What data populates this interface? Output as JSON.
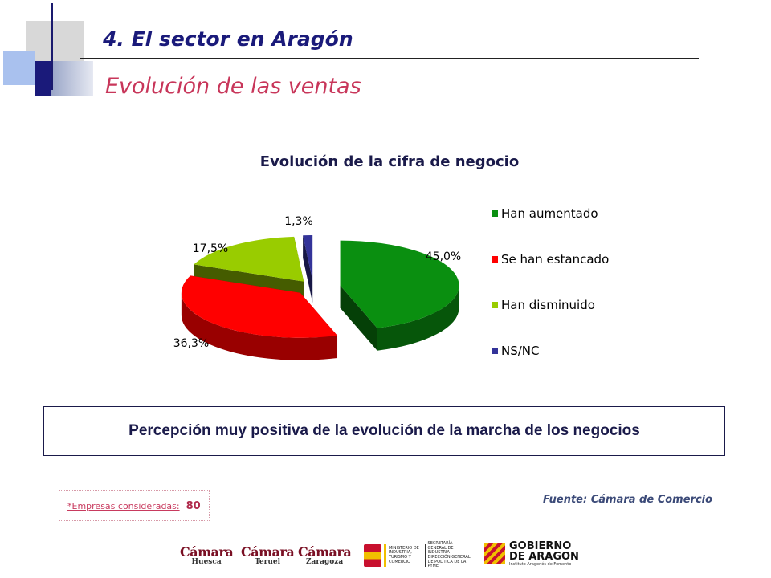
{
  "header": {
    "title": "4. El sector en Aragón",
    "subtitle": "Evolución de las ventas"
  },
  "chart_data": {
    "type": "pie",
    "title": "Evolución de la cifra de negocio",
    "categories": [
      "Han aumentado",
      "Se han estancado",
      "Han disminuido",
      "NS/NC"
    ],
    "values": [
      45.0,
      36.3,
      17.5,
      1.3
    ],
    "data_labels": [
      "45,0%",
      "36,3%",
      "17,5%",
      "1,3%"
    ],
    "colors": [
      "#0a8f10",
      "#ff0000",
      "#99cc00",
      "#333399"
    ],
    "legend": "right",
    "style": "3d-exploded"
  },
  "callout": {
    "text": "Percepción muy positiva de la evolución de la marcha de los negocios"
  },
  "note": {
    "label": "*Empresas consideradas:",
    "value": "80"
  },
  "source": {
    "text": "Fuente: Cámara de Comercio"
  },
  "logos": [
    {
      "brand": "Cámara",
      "city": "Huesca"
    },
    {
      "brand": "Cámara",
      "city": "Teruel"
    },
    {
      "brand": "Cámara",
      "city": "Zaragoza"
    }
  ],
  "ministry": {
    "left": "MINISTERIO DE INDUSTRIA, TURISMO Y COMERCIO",
    "right_top": "SECRETARÍA GENERAL DE INDUSTRIA",
    "right_bottom": "DIRECCIÓN GENERAL DE POLÍTICA DE LA PYME"
  },
  "gobierno": {
    "line1": "GOBIERNO",
    "line2": "DE ARAGON",
    "line3": "Instituto Aragonés de Fomento"
  }
}
